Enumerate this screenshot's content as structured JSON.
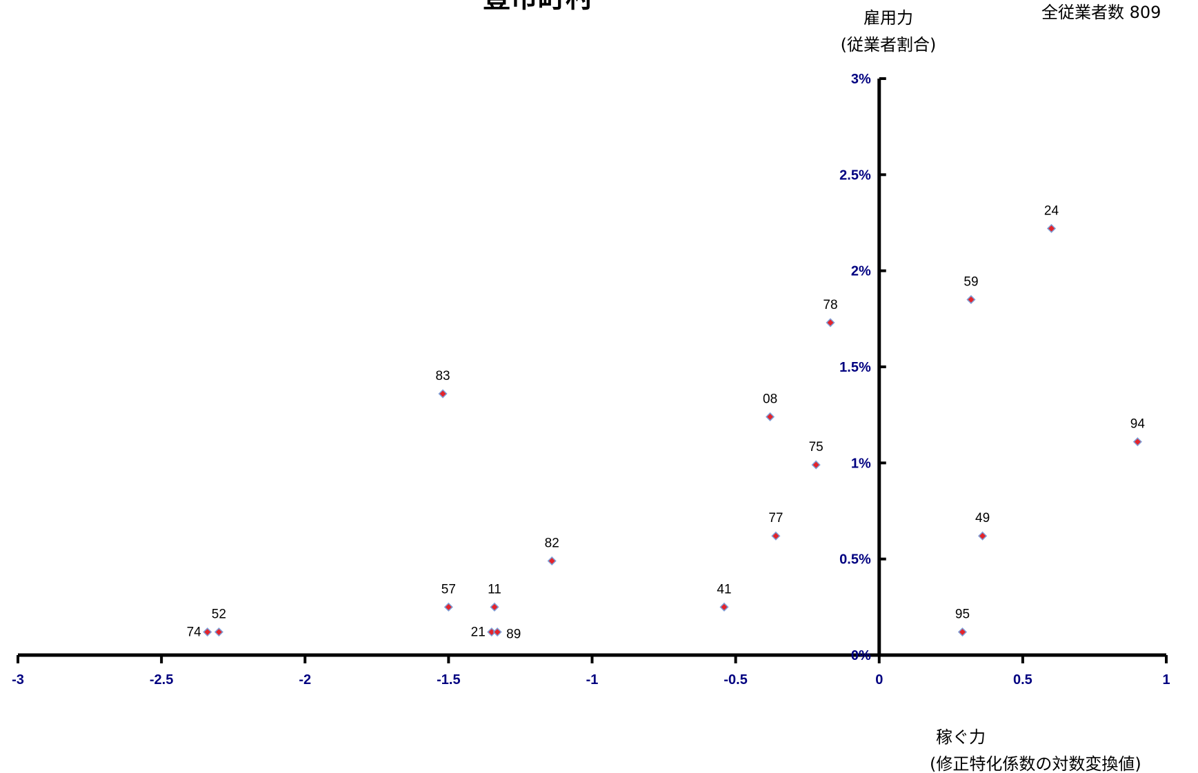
{
  "chart_data": {
    "type": "scatter",
    "title": "豊市町村",
    "note": "全従業者数 809",
    "ylabel": "雇用力",
    "ylabel_sub": "(従業者割合)",
    "xlabel": "稼ぐ力",
    "xlabel_sub": "(修正特化係数の対数変換値)",
    "xlim": [
      -3,
      1
    ],
    "ylim": [
      0,
      3
    ],
    "x_ticks": [
      "-3",
      "-2.5",
      "-2",
      "-1.5",
      "-1",
      "-0.5",
      "0",
      "0.5",
      "1"
    ],
    "y_ticks": [
      "0%",
      "0.5%",
      "1%",
      "1.5%",
      "2%",
      "2.5%",
      "3%"
    ],
    "y_unit": "%",
    "grid": false,
    "legend": "none",
    "marker_fill": "#e3242b",
    "marker_edge": "#7f9fd7",
    "points": [
      {
        "label": "24",
        "x": 0.6,
        "y": 2.22
      },
      {
        "label": "59",
        "x": 0.32,
        "y": 1.85
      },
      {
        "label": "78",
        "x": -0.17,
        "y": 1.73
      },
      {
        "label": "83",
        "x": -1.52,
        "y": 1.36
      },
      {
        "label": "08",
        "x": -0.38,
        "y": 1.24
      },
      {
        "label": "94",
        "x": 0.9,
        "y": 1.11
      },
      {
        "label": "75",
        "x": -0.22,
        "y": 0.99
      },
      {
        "label": "77",
        "x": -0.36,
        "y": 0.62
      },
      {
        "label": "49",
        "x": 0.36,
        "y": 0.62
      },
      {
        "label": "82",
        "x": -1.14,
        "y": 0.49
      },
      {
        "label": "57",
        "x": -1.5,
        "y": 0.25
      },
      {
        "label": "11",
        "x": -1.34,
        "y": 0.25
      },
      {
        "label": "41",
        "x": -0.54,
        "y": 0.25
      },
      {
        "label": "52",
        "x": -2.3,
        "y": 0.12
      },
      {
        "label": "74",
        "x": -2.34,
        "y": 0.12
      },
      {
        "label": "21",
        "x": -1.35,
        "y": 0.12
      },
      {
        "label": "89",
        "x": -1.33,
        "y": 0.12
      },
      {
        "label": "95",
        "x": 0.29,
        "y": 0.12
      }
    ]
  }
}
